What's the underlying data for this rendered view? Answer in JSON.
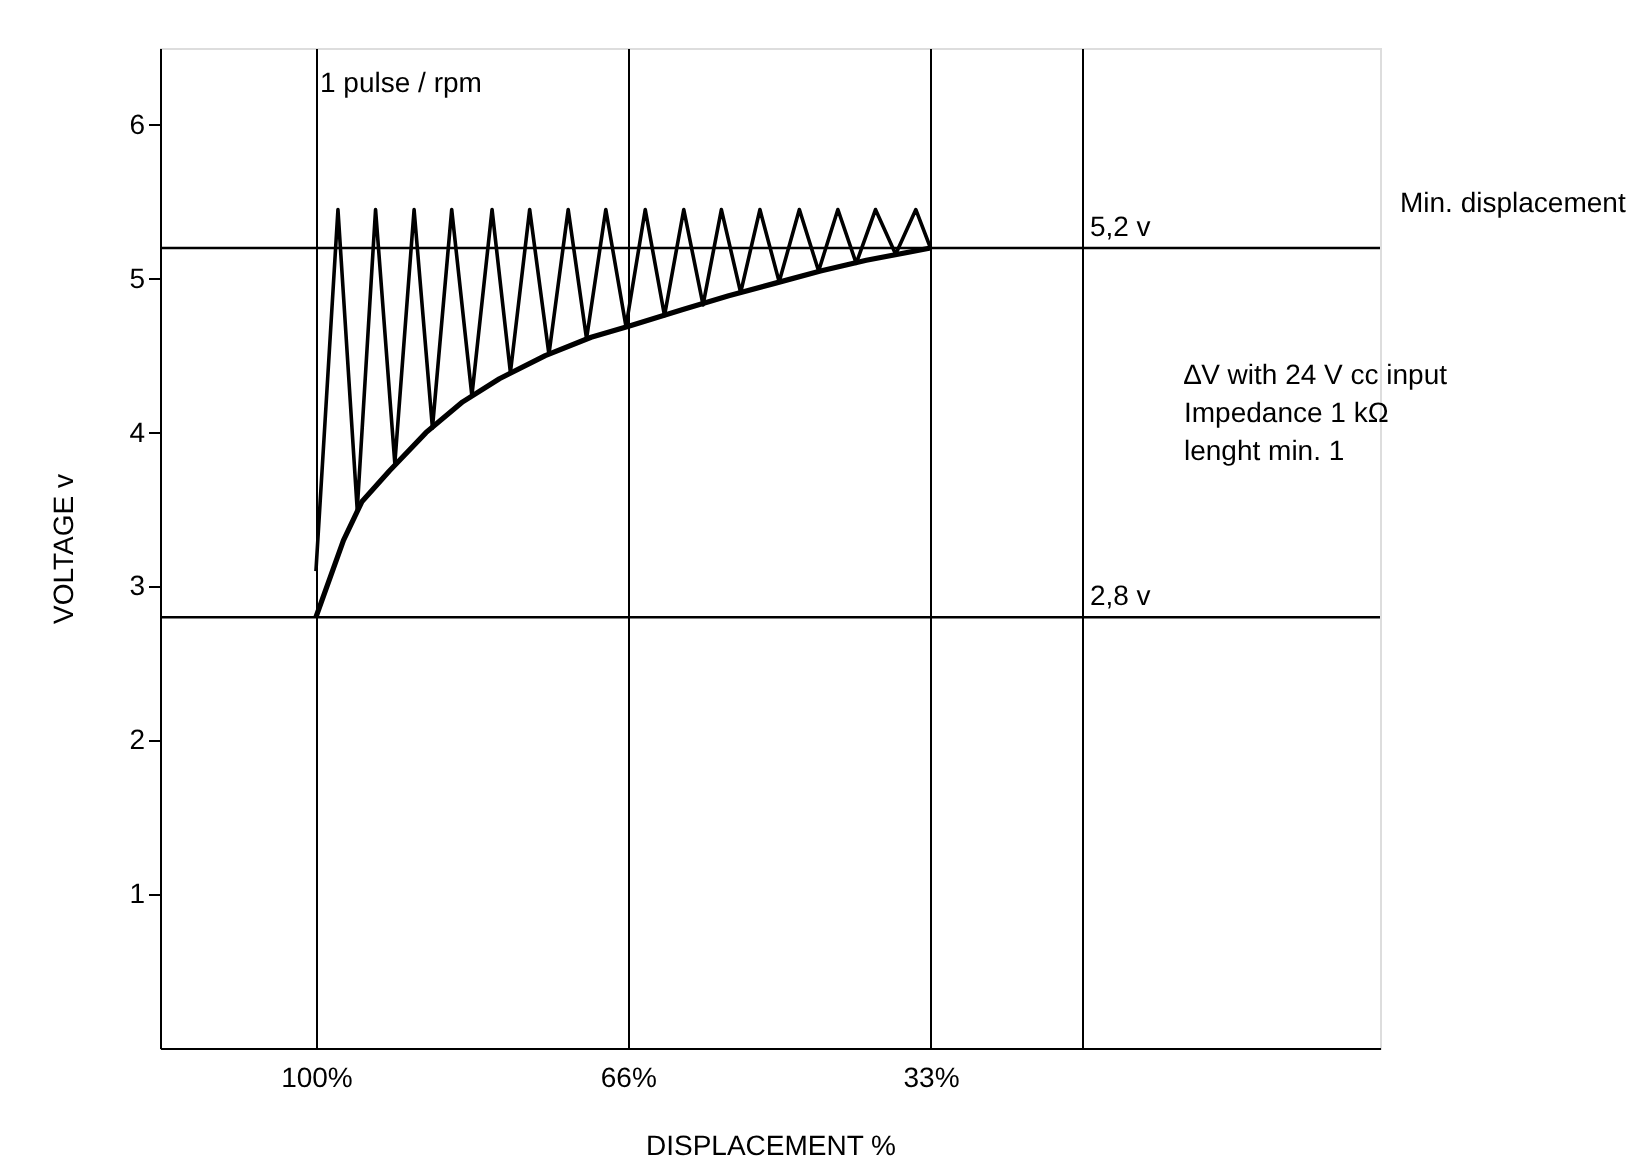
{
  "chart_data": {
    "type": "line",
    "xlabel": "DISPLACEMENT %",
    "ylabel": "VOLTAGE v",
    "xlim": [
      117,
      -16
    ],
    "ylim": [
      0,
      6.5
    ],
    "xticks": [
      {
        "value": 100,
        "label": "100%"
      },
      {
        "value": 66,
        "label": "66%"
      },
      {
        "value": 33,
        "label": "33%"
      },
      {
        "value": 16.5,
        "label": null
      }
    ],
    "yticks": [
      1,
      2,
      3,
      4,
      5,
      6
    ],
    "grid": "x",
    "legend": false,
    "marker": "none",
    "line_style": "solid",
    "series": [
      {
        "color": "#000000",
        "x": [
          100,
          97,
          95,
          92,
          88,
          84,
          80,
          75,
          70,
          66,
          60,
          55,
          50,
          45,
          40,
          33
        ],
        "values": [
          2.8,
          3.3,
          3.55,
          3.75,
          4.0,
          4.2,
          4.35,
          4.5,
          4.62,
          4.69,
          4.8,
          4.89,
          4.97,
          5.05,
          5.12,
          5.2
        ]
      },
      {
        "color": "#000000",
        "x": [
          100,
          97.6,
          95.5,
          93.5,
          91.4,
          89.3,
          87.3,
          85.2,
          83.0,
          80.8,
          78.8,
          76.7,
          74.6,
          72.5,
          70.5,
          68.4,
          66.2,
          64.1,
          62.0,
          59.9,
          57.8,
          55.8,
          53.7,
          51.6,
          49.5,
          47.3,
          45.2,
          43.1,
          41.1,
          39.0,
          36.8,
          34.6,
          33
        ],
        "values": [
          3.1,
          5.45,
          3.5,
          5.45,
          3.8,
          5.45,
          4.03,
          5.45,
          4.24,
          5.45,
          4.39,
          5.45,
          4.51,
          5.45,
          4.61,
          5.45,
          4.69,
          5.45,
          4.76,
          5.45,
          4.83,
          5.45,
          4.91,
          5.45,
          4.98,
          5.45,
          5.05,
          5.45,
          5.1,
          5.45,
          5.16,
          5.45,
          5.2
        ]
      }
    ],
    "ref_lines": [
      {
        "axis": "y",
        "value": 5.2,
        "label": "5,2 v",
        "color": "#000000"
      },
      {
        "axis": "y",
        "value": 2.8,
        "label": "2,8 v",
        "color": "#000000"
      }
    ],
    "annotations": [
      "1 pulse / rpm",
      "Min. displacement",
      "∆V with 24 V cc input",
      "Impedance 1 kΩ",
      "lenght min. 1"
    ]
  }
}
